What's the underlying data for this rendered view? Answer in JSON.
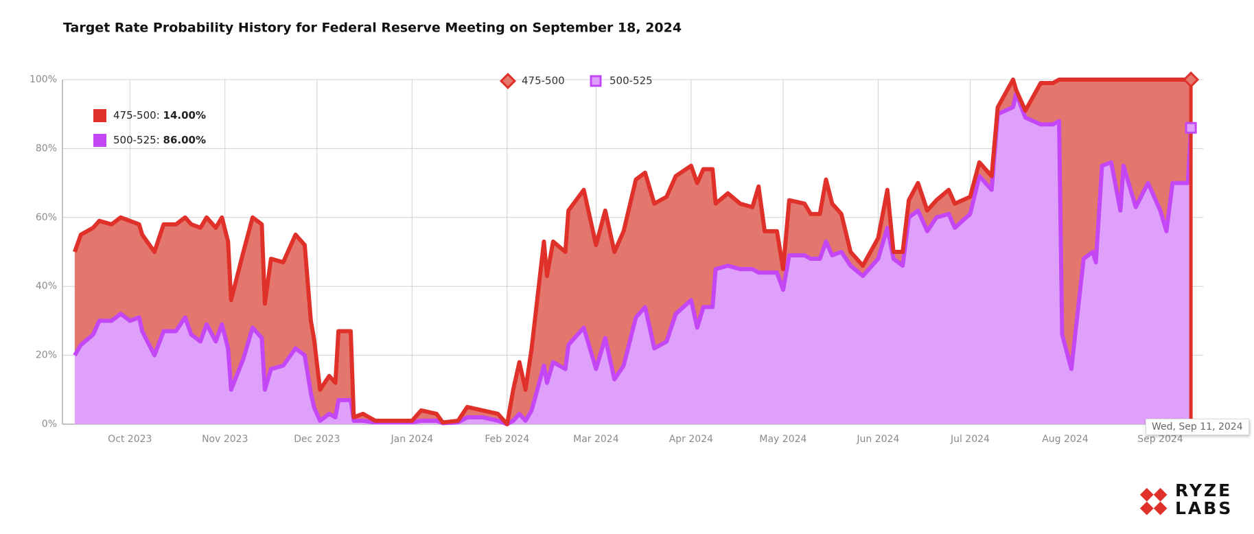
{
  "chart_data": {
    "type": "area",
    "stacked": true,
    "title": "Target Rate Probability History for Federal Reserve Meeting on September 18, 2024",
    "x": [
      "2023-09-13",
      "2023-09-15",
      "2023-09-19",
      "2023-09-21",
      "2023-09-25",
      "2023-09-28",
      "2023-10-01",
      "2023-10-04",
      "2023-10-05",
      "2023-10-09",
      "2023-10-12",
      "2023-10-16",
      "2023-10-19",
      "2023-10-21",
      "2023-10-24",
      "2023-10-26",
      "2023-10-29",
      "2023-10-31",
      "2023-11-02",
      "2023-11-03",
      "2023-11-07",
      "2023-11-10",
      "2023-11-13",
      "2023-11-14",
      "2023-11-16",
      "2023-11-20",
      "2023-11-24",
      "2023-11-27",
      "2023-11-29",
      "2023-11-30",
      "2023-12-02",
      "2023-12-05",
      "2023-12-07",
      "2023-12-08",
      "2023-12-12",
      "2023-12-13",
      "2023-12-16",
      "2023-12-20",
      "2024-01-01",
      "2024-01-04",
      "2024-01-09",
      "2024-01-11",
      "2024-01-16",
      "2024-01-19",
      "2024-01-24",
      "2024-01-29",
      "2024-02-01",
      "2024-02-03",
      "2024-02-05",
      "2024-02-07",
      "2024-02-09",
      "2024-02-13",
      "2024-02-14",
      "2024-02-16",
      "2024-02-20",
      "2024-02-21",
      "2024-02-26",
      "2024-02-28",
      "2024-03-01",
      "2024-03-04",
      "2024-03-07",
      "2024-03-10",
      "2024-03-14",
      "2024-03-17",
      "2024-03-20",
      "2024-03-24",
      "2024-03-27",
      "2024-04-01",
      "2024-04-03",
      "2024-04-05",
      "2024-04-08",
      "2024-04-09",
      "2024-04-13",
      "2024-04-17",
      "2024-04-21",
      "2024-04-23",
      "2024-04-25",
      "2024-04-29",
      "2024-05-01",
      "2024-05-03",
      "2024-05-08",
      "2024-05-10",
      "2024-05-13",
      "2024-05-15",
      "2024-05-17",
      "2024-05-20",
      "2024-05-23",
      "2024-05-27",
      "2024-06-01",
      "2024-06-04",
      "2024-06-06",
      "2024-06-09",
      "2024-06-11",
      "2024-06-14",
      "2024-06-17",
      "2024-06-20",
      "2024-06-24",
      "2024-06-26",
      "2024-07-01",
      "2024-07-04",
      "2024-07-08",
      "2024-07-10",
      "2024-07-15",
      "2024-07-16",
      "2024-07-19",
      "2024-07-24",
      "2024-07-28",
      "2024-07-30",
      "2024-07-31",
      "2024-08-03",
      "2024-08-05",
      "2024-08-07",
      "2024-08-10",
      "2024-08-11",
      "2024-08-13",
      "2024-08-16",
      "2024-08-19",
      "2024-08-20",
      "2024-08-24",
      "2024-08-28",
      "2024-09-01",
      "2024-09-03",
      "2024-09-05",
      "2024-09-10",
      "2024-09-11"
    ],
    "series": [
      {
        "name": "475-500",
        "color": "#e0302a",
        "fill": "#e4776d",
        "marker": "diamond",
        "values": [
          30,
          32,
          31,
          29,
          28,
          28,
          29,
          27,
          28,
          30,
          31,
          31,
          29,
          32,
          33,
          31,
          33,
          31,
          31,
          26,
          31,
          32,
          33,
          25,
          32,
          30,
          33,
          32,
          21,
          20,
          9,
          11,
          10,
          20,
          20,
          1,
          2,
          0.5,
          0.5,
          3,
          2,
          0.2,
          0.5,
          3,
          2,
          2,
          0,
          9,
          15,
          9,
          18,
          36,
          31,
          35,
          34,
          39,
          40,
          38,
          36,
          37,
          37,
          39,
          40,
          39,
          42,
          42,
          40,
          39,
          42,
          40,
          40,
          19,
          21,
          19,
          18,
          25,
          12,
          12,
          6,
          16,
          15,
          13,
          13,
          18,
          15,
          11,
          4,
          3,
          6,
          11,
          2,
          4,
          5,
          8,
          6,
          5,
          7,
          7,
          5,
          4,
          4,
          2,
          8,
          1,
          2,
          12,
          12,
          12,
          74,
          84,
          68,
          52,
          50,
          53,
          25,
          24,
          38,
          25,
          37,
          30,
          38,
          44,
          30,
          30,
          14
        ]
      },
      {
        "name": "500-525",
        "color": "#c447f5",
        "fill": "#dfa0fb",
        "marker": "square",
        "values": [
          20,
          23,
          26,
          30,
          30,
          32,
          30,
          31,
          27,
          20,
          27,
          27,
          31,
          26,
          24,
          29,
          24,
          29,
          22,
          10,
          19,
          28,
          25,
          10,
          16,
          17,
          22,
          20,
          9,
          5,
          1,
          3,
          2,
          7,
          7,
          1,
          1,
          0.5,
          0.5,
          1,
          1,
          0.3,
          0.5,
          2,
          2,
          1,
          0,
          1,
          3,
          1,
          4,
          17,
          12,
          18,
          16,
          23,
          28,
          22,
          16,
          25,
          13,
          17,
          31,
          34,
          22,
          24,
          32,
          36,
          28,
          34,
          34,
          45,
          46,
          45,
          45,
          44,
          44,
          44,
          39,
          49,
          49,
          48,
          48,
          53,
          49,
          50,
          46,
          43,
          48,
          57,
          48,
          46,
          60,
          62,
          56,
          60,
          61,
          57,
          61,
          72,
          68,
          90,
          92,
          96,
          89,
          87,
          87,
          88,
          26,
          16,
          32,
          48,
          50,
          47,
          75,
          76,
          62,
          75,
          63,
          70,
          62,
          56,
          70,
          70,
          86
        ]
      }
    ],
    "xlim": [
      "2023-09-09",
      "2024-09-15"
    ],
    "xticks": [
      {
        "value": "2023-10-01",
        "label": "Oct 2023"
      },
      {
        "value": "2023-11-01",
        "label": "Nov 2023"
      },
      {
        "value": "2023-12-01",
        "label": "Dec 2023"
      },
      {
        "value": "2024-01-01",
        "label": "Jan 2024"
      },
      {
        "value": "2024-02-01",
        "label": "Feb 2024"
      },
      {
        "value": "2024-03-01",
        "label": "Mar 2024"
      },
      {
        "value": "2024-04-01",
        "label": "Apr 2024"
      },
      {
        "value": "2024-05-01",
        "label": "May 2024"
      },
      {
        "value": "2024-06-01",
        "label": "Jun 2024"
      },
      {
        "value": "2024-07-01",
        "label": "Jul 2024"
      },
      {
        "value": "2024-08-01",
        "label": "Aug 2024"
      },
      {
        "value": "2024-09-01",
        "label": "Sep 2024"
      }
    ],
    "ylim": [
      0,
      100
    ],
    "yticks": [
      {
        "value": 0,
        "label": "0%"
      },
      {
        "value": 20,
        "label": "20%"
      },
      {
        "value": 40,
        "label": "40%"
      },
      {
        "value": 60,
        "label": "60%"
      },
      {
        "value": 80,
        "label": "80%"
      },
      {
        "value": 100,
        "label": "100%"
      }
    ],
    "grid": true,
    "legend": "top",
    "hover": {
      "date": "Wed, Sep 11, 2024",
      "values": [
        14,
        86
      ],
      "value_labels": [
        "14.00%",
        "86.00%"
      ]
    }
  },
  "brand": [
    "RYZE",
    "LABS"
  ]
}
